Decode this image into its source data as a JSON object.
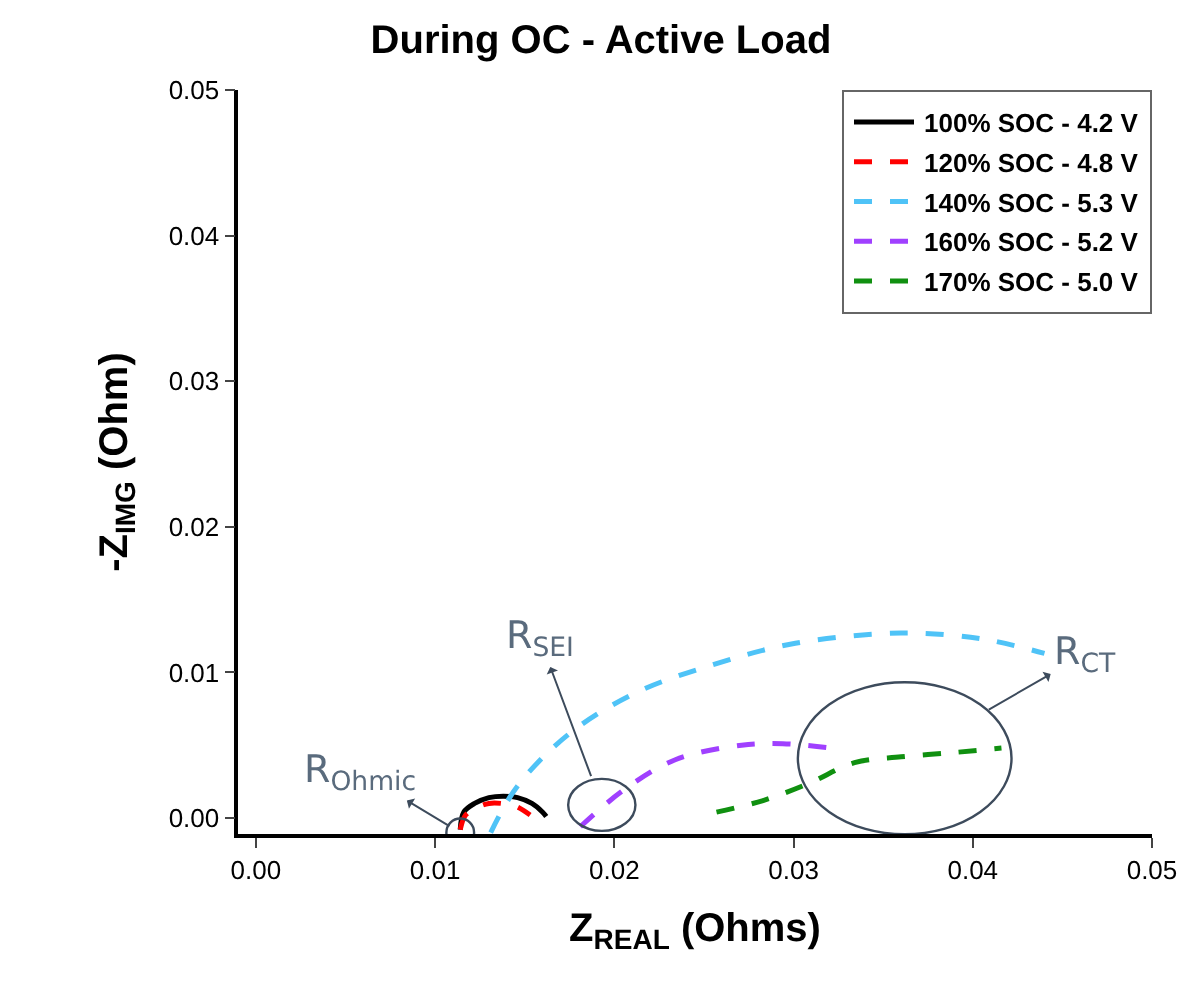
{
  "chart_data": {
    "type": "line",
    "title": "During OC - Active Load",
    "xlabel": "Z$_{REAL}$ (Ohms)",
    "ylabel": "-Z$_{IMG}$ (Ohm)",
    "xlim": [
      -0.001,
      0.05
    ],
    "ylim": [
      -0.0011,
      0.05
    ],
    "xticks": [
      {
        "value": 0,
        "label": "0.00"
      },
      {
        "value": 0.01,
        "label": "0.01"
      },
      {
        "value": 0.02,
        "label": "0.02"
      },
      {
        "value": 0.03,
        "label": "0.03"
      },
      {
        "value": 0.04,
        "label": "0.04"
      },
      {
        "value": 0.05,
        "label": "0.05"
      }
    ],
    "yticks": [
      {
        "value": 0,
        "label": "0.00"
      },
      {
        "value": 0.01,
        "label": "0.01"
      },
      {
        "value": 0.02,
        "label": "0.02"
      },
      {
        "value": 0.03,
        "label": "0.03"
      },
      {
        "value": 0.04,
        "label": "0.04"
      },
      {
        "value": 0.05,
        "label": "0.05"
      }
    ],
    "legend": "top right",
    "marker": "none",
    "series": [
      {
        "name": "100% SOC - 4.2 V",
        "color": "#000000",
        "line_style": "solid",
        "x": [
          0.0114,
          0.0116,
          0.0122,
          0.013,
          0.0138,
          0.0146,
          0.0154,
          0.016,
          0.0162
        ],
        "values": [
          -0.0008,
          0.0004,
          0.001,
          0.0014,
          0.0015,
          0.0014,
          0.001,
          0.0004,
          0.0001
        ]
      },
      {
        "name": "120% SOC - 4.8 V",
        "color": "#ff0000",
        "line_style": "dashed",
        "x": [
          0.0114,
          0.0117,
          0.0123,
          0.013,
          0.0137,
          0.0145,
          0.0153
        ],
        "values": [
          -0.0008,
          0.0002,
          0.0007,
          0.001,
          0.001,
          0.0008,
          0.0002
        ]
      },
      {
        "name": "140% SOC - 5.3 V",
        "color": "#4fc3f7",
        "line_style": "dashed",
        "x": [
          0.0131,
          0.0146,
          0.0175,
          0.0212,
          0.0257,
          0.0301,
          0.036,
          0.0405,
          0.044
        ],
        "values": [
          -0.001,
          0.0022,
          0.0058,
          0.0086,
          0.0106,
          0.012,
          0.0127,
          0.0123,
          0.0113
        ]
      },
      {
        "name": "160% SOC - 5.2 V",
        "color": "#a040ff",
        "line_style": "dashed",
        "x": [
          0.0181,
          0.0205,
          0.0234,
          0.0271,
          0.0294,
          0.0321
        ],
        "values": [
          -0.0006,
          0.0019,
          0.004,
          0.005,
          0.0051,
          0.0048
        ]
      },
      {
        "name": "170% SOC - 5.0 V",
        "color": "#109010",
        "line_style": "dashed",
        "x": [
          0.0257,
          0.0283,
          0.0309,
          0.0334,
          0.036,
          0.039,
          0.0416
        ],
        "values": [
          0.0004,
          0.0012,
          0.0024,
          0.0038,
          0.0042,
          0.0045,
          0.0048
        ]
      }
    ],
    "annotations": [
      {
        "text": "R$_{Ohmic}$",
        "x": 0.0114,
        "y": -0.001
      },
      {
        "text": "R$_{SEI}$",
        "x": 0.0193,
        "y": 0.0009
      },
      {
        "text": "R$_{CT}$",
        "x": 0.0362,
        "y": 0.0041
      }
    ]
  }
}
